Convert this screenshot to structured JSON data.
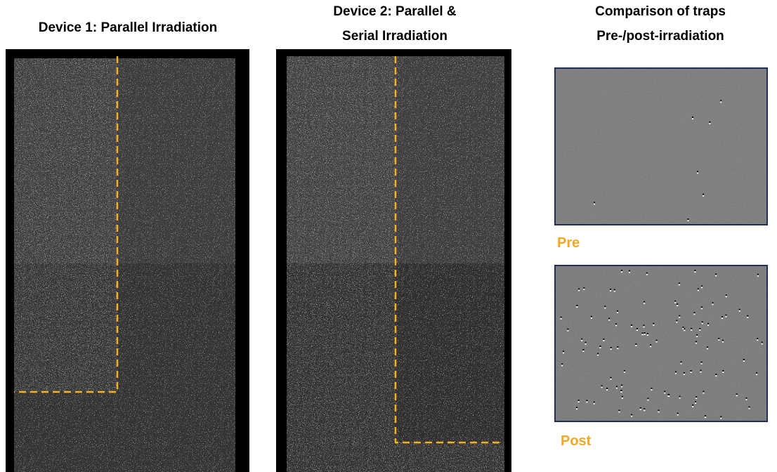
{
  "panels": [
    {
      "title_lines": [
        "Device 1: Parallel Irradiation"
      ]
    },
    {
      "title_lines": [
        "Device 2: Parallel &",
        "Serial Irradiation"
      ]
    },
    {
      "title_lines": [
        "Comparison of traps",
        "Pre-/post-irradiation"
      ],
      "labels": [
        "Pre",
        "Post"
      ]
    }
  ]
}
